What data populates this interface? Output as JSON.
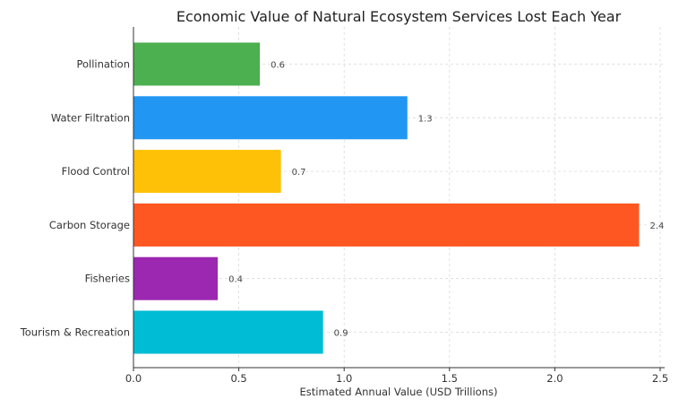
{
  "chart_data": {
    "type": "bar",
    "orientation": "horizontal",
    "title": "Economic Value of Natural Ecosystem Services Lost Each Year",
    "xlabel": "Estimated Annual Value (USD Trillions)",
    "ylabel": "",
    "categories": [
      "Pollination",
      "Water Filtration",
      "Flood Control",
      "Carbon Storage",
      "Fisheries",
      "Tourism & Recreation"
    ],
    "values": [
      0.6,
      1.3,
      0.7,
      2.4,
      0.4,
      0.9
    ],
    "value_labels": [
      "0.6",
      "1.3",
      "0.7",
      "2.4",
      "0.4",
      "0.9"
    ],
    "colors": [
      "#4caf50",
      "#2196f3",
      "#ffc107",
      "#ff5722",
      "#9c27b0",
      "#00bcd4"
    ],
    "xlim": [
      0,
      2.5
    ],
    "xticks": [
      0.0,
      0.5,
      1.0,
      1.5,
      2.0,
      2.5
    ],
    "xtick_labels": [
      "0.0",
      "0.5",
      "1.0",
      "1.5",
      "2.0",
      "2.5"
    ],
    "grid": true,
    "legend": "none"
  }
}
